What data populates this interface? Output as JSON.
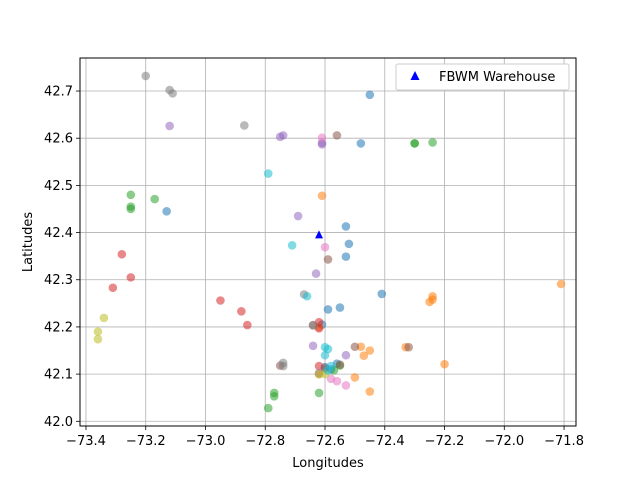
{
  "chart_data": {
    "type": "scatter",
    "xlabel": "Longitudes",
    "ylabel": "Latitudes",
    "xlim": [
      -73.42,
      -71.76
    ],
    "ylim": [
      41.99,
      42.77
    ],
    "xticks": [
      -73.4,
      -73.2,
      -73.0,
      -72.8,
      -72.6,
      -72.4,
      -72.2,
      -72.0,
      -71.8
    ],
    "xtick_labels": [
      "−73.4",
      "−73.2",
      "−73.0",
      "−72.8",
      "−72.6",
      "−72.4",
      "−72.2",
      "−72.0",
      "−71.8"
    ],
    "yticks": [
      42.0,
      42.1,
      42.2,
      42.3,
      42.4,
      42.5,
      42.6,
      42.7
    ],
    "ytick_labels": [
      "42.0",
      "42.1",
      "42.2",
      "42.3",
      "42.4",
      "42.5",
      "42.6",
      "42.7"
    ],
    "grid": true,
    "legend": {
      "position": "top-right",
      "entries": [
        "FBWM Warehouse"
      ]
    },
    "warehouse": {
      "name": "FBWM Warehouse",
      "x": -72.62,
      "y": 42.395,
      "color": "#0000ff",
      "marker": "triangle"
    },
    "groups": [
      {
        "color": "#1f77b4",
        "points": [
          [
            -72.45,
            42.692
          ],
          [
            -72.48,
            42.589
          ],
          [
            -73.13,
            42.445
          ],
          [
            -72.53,
            42.413
          ],
          [
            -72.52,
            42.376
          ],
          [
            -72.53,
            42.349
          ],
          [
            -72.41,
            42.27
          ],
          [
            -72.55,
            42.241
          ],
          [
            -72.59,
            42.237
          ],
          [
            -72.61,
            42.205
          ],
          [
            -72.56,
            42.122
          ],
          [
            -72.6,
            42.115
          ],
          [
            -72.58,
            42.11
          ]
        ]
      },
      {
        "color": "#ff7f0e",
        "points": [
          [
            -72.61,
            42.478
          ],
          [
            -71.81,
            42.291
          ],
          [
            -72.24,
            42.265
          ],
          [
            -72.24,
            42.258
          ],
          [
            -72.25,
            42.253
          ],
          [
            -72.33,
            42.157
          ],
          [
            -72.48,
            42.158
          ],
          [
            -72.45,
            42.15
          ],
          [
            -72.47,
            42.139
          ],
          [
            -72.2,
            42.121
          ],
          [
            -72.5,
            42.093
          ],
          [
            -72.45,
            42.063
          ],
          [
            -72.62,
            42.2
          ],
          [
            -72.62,
            42.1
          ]
        ]
      },
      {
        "color": "#2ca02c",
        "points": [
          [
            -73.25,
            42.48
          ],
          [
            -73.25,
            42.455
          ],
          [
            -73.25,
            42.45
          ],
          [
            -73.17,
            42.471
          ],
          [
            -72.3,
            42.589
          ],
          [
            -72.3,
            42.589
          ],
          [
            -72.24,
            42.591
          ],
          [
            -72.77,
            42.06
          ],
          [
            -72.77,
            42.053
          ],
          [
            -72.79,
            42.028
          ],
          [
            -72.62,
            42.06
          ],
          [
            -72.57,
            42.108
          ],
          [
            -72.55,
            42.118
          ]
        ]
      },
      {
        "color": "#d62728",
        "points": [
          [
            -73.28,
            42.354
          ],
          [
            -73.25,
            42.305
          ],
          [
            -73.31,
            42.283
          ],
          [
            -72.95,
            42.256
          ],
          [
            -72.88,
            42.233
          ],
          [
            -72.86,
            42.204
          ],
          [
            -72.62,
            42.21
          ],
          [
            -72.62,
            42.197
          ],
          [
            -72.62,
            42.117
          ]
        ]
      },
      {
        "color": "#9467bd",
        "points": [
          [
            -73.12,
            42.626
          ],
          [
            -72.74,
            42.606
          ],
          [
            -72.75,
            42.603
          ],
          [
            -72.61,
            42.59
          ],
          [
            -72.61,
            42.587
          ],
          [
            -72.69,
            42.435
          ],
          [
            -72.63,
            42.313
          ],
          [
            -72.64,
            42.16
          ],
          [
            -72.53,
            42.14
          ],
          [
            -72.62,
            42.102
          ]
        ]
      },
      {
        "color": "#8c564b",
        "points": [
          [
            -72.56,
            42.606
          ],
          [
            -72.59,
            42.343
          ],
          [
            -72.64,
            42.204
          ],
          [
            -72.5,
            42.158
          ],
          [
            -72.32,
            42.157
          ],
          [
            -72.75,
            42.118
          ],
          [
            -72.6,
            42.112
          ],
          [
            -72.55,
            42.12
          ]
        ]
      },
      {
        "color": "#e377c2",
        "points": [
          [
            -72.61,
            42.601
          ],
          [
            -72.6,
            42.369
          ],
          [
            -72.53,
            42.076
          ],
          [
            -72.56,
            42.085
          ],
          [
            -72.58,
            42.09
          ]
        ]
      },
      {
        "color": "#7f7f7f",
        "points": [
          [
            -73.2,
            42.732
          ],
          [
            -73.12,
            42.702
          ],
          [
            -73.11,
            42.695
          ],
          [
            -72.87,
            42.627
          ],
          [
            -72.67,
            42.269
          ],
          [
            -72.64,
            42.203
          ],
          [
            -72.74,
            42.124
          ],
          [
            -72.74,
            42.117
          ]
        ]
      },
      {
        "color": "#bcbd22",
        "points": [
          [
            -73.34,
            42.219
          ],
          [
            -73.36,
            42.19
          ],
          [
            -73.36,
            42.174
          ],
          [
            -72.62,
            42.1
          ],
          [
            -72.6,
            42.1
          ]
        ]
      },
      {
        "color": "#17becf",
        "points": [
          [
            -72.79,
            42.525
          ],
          [
            -72.71,
            42.373
          ],
          [
            -72.66,
            42.265
          ],
          [
            -72.6,
            42.157
          ],
          [
            -72.59,
            42.153
          ],
          [
            -72.6,
            42.14
          ],
          [
            -72.58,
            42.117
          ],
          [
            -72.59,
            42.108
          ]
        ]
      }
    ]
  }
}
